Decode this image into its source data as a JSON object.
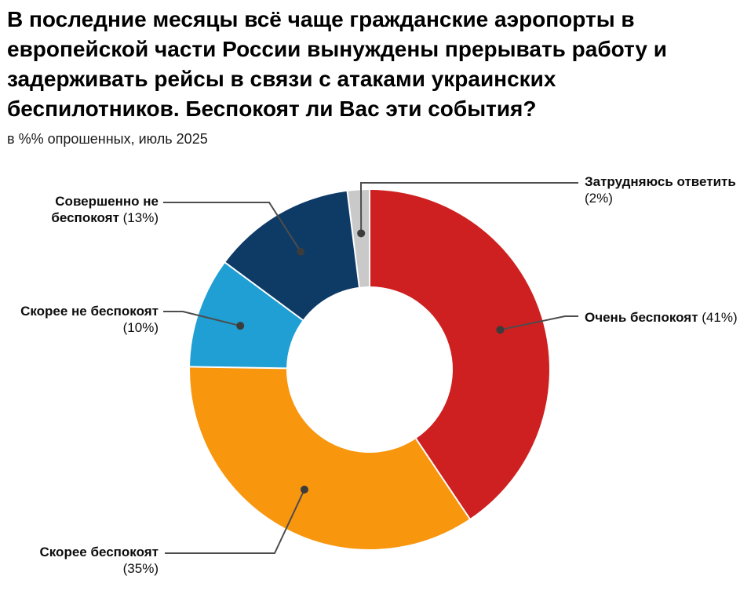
{
  "header": {
    "title_lines": [
      "В последние месяцы всё чаще гражданские аэропорты в",
      "европейской части России вынуждены прерывать работу и",
      "задерживать рейсы в связи с атаками украинских",
      "беспилотников. Беспокоят ли Вас эти события?"
    ],
    "subtitle": "в %% опрошенных, июль 2025"
  },
  "chart_data": {
    "type": "pie",
    "variant": "donut",
    "title": "В последние месяцы всё чаще гражданские аэропорты в европейской части России вынуждены прерывать работу и задерживать рейсы в связи с атаками украинских беспилотников. Беспокоят ли Вас эти события?",
    "subtitle": "в %% опрошенных, июль 2025",
    "unit": "%",
    "start_angle_deg": 0,
    "direction": "clockwise",
    "slices": [
      {
        "label": "Очень беспокоят",
        "value": 41,
        "pct_label": "(41%)",
        "color": "#CE2020"
      },
      {
        "label": "Скорее беспокоят",
        "value": 35,
        "pct_label": "(35%)",
        "color": "#F8960E"
      },
      {
        "label": "Скорее не беспокоят",
        "value": 10,
        "pct_label": "(10%)",
        "color": "#1F9FD4"
      },
      {
        "label": "Совершенно не беспокоят",
        "value": 13,
        "pct_label": "(13%)",
        "color": "#0E3A66"
      },
      {
        "label": "Затрудняюсь ответить",
        "value": 2,
        "pct_label": "(2%)",
        "color": "#C9C9C9"
      }
    ],
    "leader_line_color": "#4D4D4D",
    "leader_dot_color": "#3C3C3C"
  }
}
